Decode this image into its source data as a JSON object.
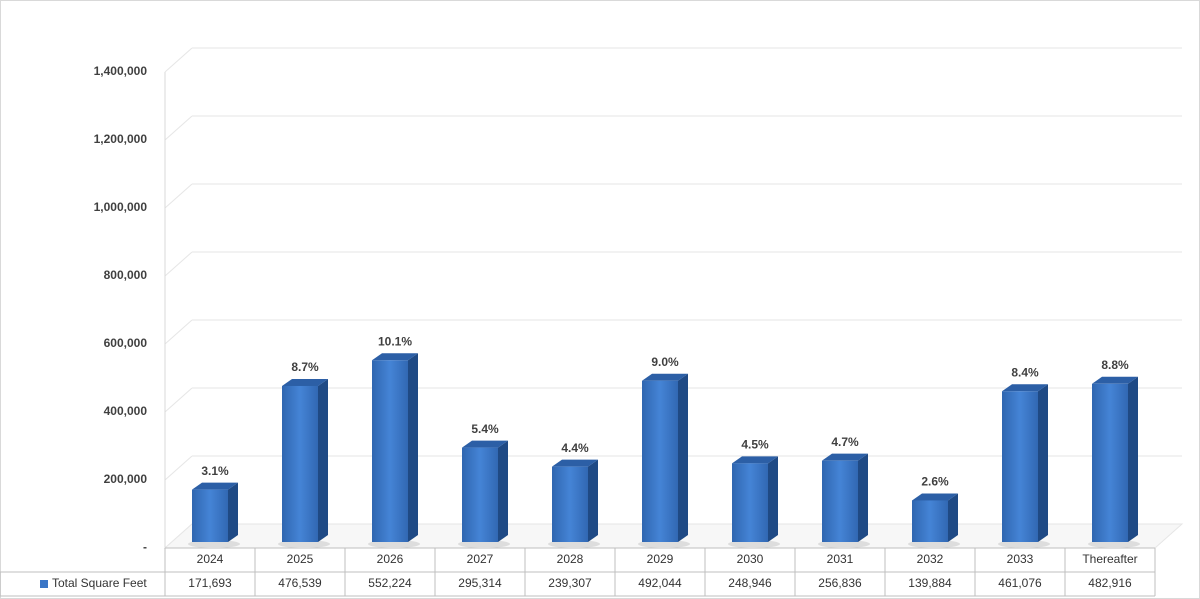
{
  "chart_data": {
    "type": "bar",
    "categories": [
      "2024",
      "2025",
      "2026",
      "2027",
      "2028",
      "2029",
      "2030",
      "2031",
      "2032",
      "2033",
      "Thereafter"
    ],
    "series": [
      {
        "name": "Total Square Feet",
        "color": "#3a76c6",
        "values": [
          171693,
          476539,
          552224,
          295314,
          239307,
          492044,
          248946,
          256836,
          139884,
          461076,
          482916
        ],
        "value_labels": [
          "171,693",
          "476,539",
          "552,224",
          "295,314",
          "239,307",
          "492,044",
          "248,946",
          "256,836",
          "139,884",
          "461,076",
          "482,916"
        ]
      }
    ],
    "annotations": [
      "3.1%",
      "8.7%",
      "10.1%",
      "5.4%",
      "4.4%",
      "9.0%",
      "4.5%",
      "4.7%",
      "2.6%",
      "8.4%",
      "8.8%"
    ],
    "ylim": [
      0,
      1400000
    ],
    "yticks": [
      {
        "value": 0,
        "label": "-"
      },
      {
        "value": 200000,
        "label": "200,000"
      },
      {
        "value": 400000,
        "label": "400,000"
      },
      {
        "value": 600000,
        "label": "600,000"
      },
      {
        "value": 800000,
        "label": "800,000"
      },
      {
        "value": 1000000,
        "label": "1,000,000"
      },
      {
        "value": 1200000,
        "label": "1,200,000"
      },
      {
        "value": 1400000,
        "label": "1,400,000"
      }
    ],
    "grid": true
  }
}
